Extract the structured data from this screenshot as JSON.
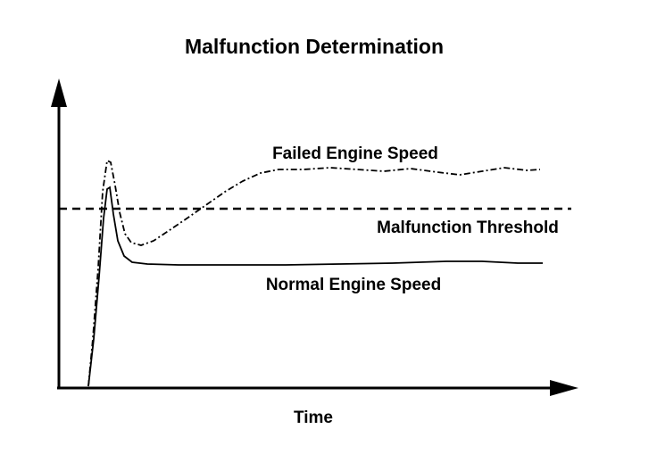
{
  "title": "Malfunction Determination",
  "x_axis_label": "Time",
  "curves": {
    "failed": "Failed Engine Speed",
    "threshold": "Malfunction Threshold",
    "normal": "Normal Engine Speed"
  },
  "colors": {
    "ink": "#000000",
    "background": "#ffffff"
  }
}
